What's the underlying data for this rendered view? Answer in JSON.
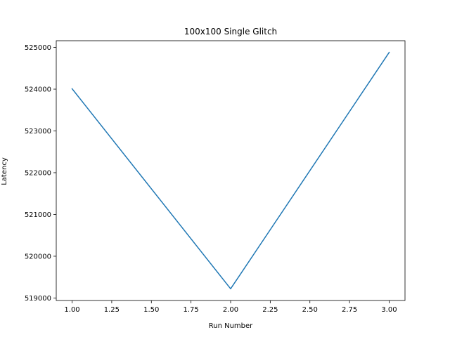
{
  "chart_data": {
    "type": "line",
    "title": "100x100 Single Glitch",
    "xlabel": "Run Number",
    "ylabel": "Latency",
    "x": [
      1.0,
      2.0,
      3.0
    ],
    "series": [
      {
        "values": [
          524010,
          519220,
          524880
        ],
        "color": "#1f77b4"
      }
    ],
    "xlim": [
      0.9,
      3.1
    ],
    "ylim": [
      518940,
      525160
    ],
    "xticks": [
      1.0,
      1.25,
      1.5,
      1.75,
      2.0,
      2.25,
      2.5,
      2.75,
      3.0
    ],
    "xtick_labels": [
      "1.00",
      "1.25",
      "1.50",
      "1.75",
      "2.00",
      "2.25",
      "2.50",
      "2.75",
      "3.00"
    ],
    "yticks": [
      519000,
      520000,
      521000,
      522000,
      523000,
      524000,
      525000
    ],
    "ytick_labels": [
      "519000",
      "520000",
      "521000",
      "522000",
      "523000",
      "524000",
      "525000"
    ],
    "grid": false,
    "legend": false
  }
}
